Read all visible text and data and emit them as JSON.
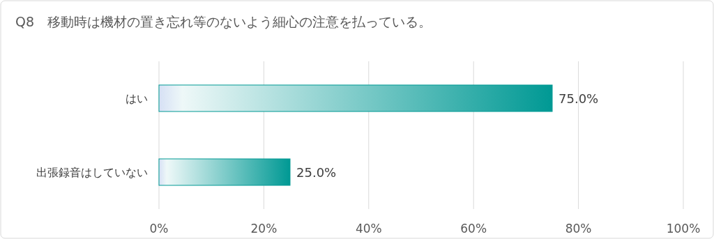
{
  "chart_data": {
    "type": "bar",
    "orientation": "horizontal",
    "title": "Q8　移動時は機材の置き忘れ等のないよう細心の注意を払っている。",
    "categories": [
      "はい",
      "出張録音はしていない"
    ],
    "values": [
      75.0,
      25.0
    ],
    "color": "#009994",
    "value_labels": [
      "75.0%",
      "25.0%"
    ],
    "xlim": [
      0,
      100
    ],
    "xticks": [
      {
        "value": 0,
        "label": "0%"
      },
      {
        "value": 20,
        "label": "20%"
      },
      {
        "value": 40,
        "label": "40%"
      },
      {
        "value": 60,
        "label": "60%"
      },
      {
        "value": 80,
        "label": "80%"
      },
      {
        "value": 100,
        "label": "100%"
      }
    ],
    "grid": "x"
  }
}
